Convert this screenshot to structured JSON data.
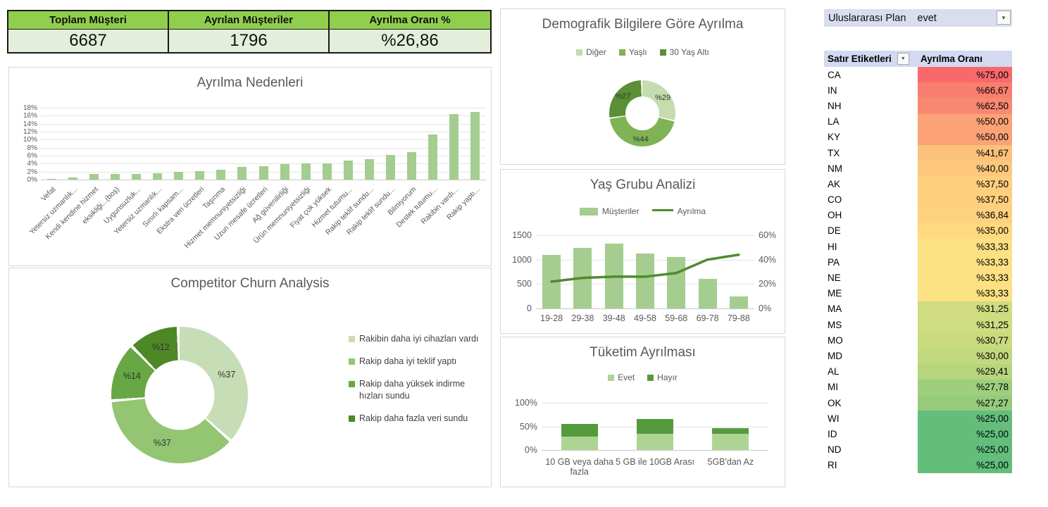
{
  "kpi": {
    "cards": [
      {
        "label": "Toplam Müşteri",
        "value": "6687"
      },
      {
        "label": "Ayrılan Müşteriler",
        "value": "1796"
      },
      {
        "label": "Ayrılma Oranı %",
        "value": "%26,86"
      }
    ]
  },
  "slicer": {
    "label": "Uluslararası Plan",
    "value": "evet"
  },
  "chart_data": [
    {
      "type": "bar",
      "title": "Ayrılma Nedenleri",
      "categories": [
        "Vefat",
        "Yetersiz uzmanlık...",
        "Kendi kendine hizmet",
        "eksikliği...(boş)",
        "Uygunsuzluk...",
        "Yetersiz uzmanlık...",
        "Sınırlı kapsam...",
        "Ekstra veri ücretleri",
        "Taşınma",
        "Hizmet memnuniyetsizliği",
        "Uzun mesafe ücretleri",
        "Ağ güvenilirliği",
        "Ürün memnuniyetsizliği",
        "Fiyat çok yüksek",
        "Hizmet tutumu...",
        "Rakip teklif sundu...",
        "Rakip teklif sundu...",
        "Bilmiyorum",
        "Destek tutumu...",
        "Rakibin vardı...",
        "Rakip yaptı..."
      ],
      "values": [
        0.2,
        0.6,
        1.4,
        1.4,
        1.5,
        1.6,
        2.0,
        2.1,
        2.5,
        3.2,
        3.4,
        3.9,
        4.0,
        4.1,
        4.7,
        5.2,
        6.1,
        6.8,
        11.3,
        16.5,
        16.9
      ],
      "ylabel_unit": "%",
      "ylim": [
        0,
        18
      ],
      "ytick_step": 2,
      "bar_color": "#A5CD8F",
      "grid": true,
      "legend_position": "none"
    },
    {
      "type": "pie",
      "subtype": "donut",
      "title": "Competitor Churn Analysis",
      "legend_position": "right",
      "slices": [
        {
          "label": "Rakibin daha iyi cihazları vardı",
          "value": 37,
          "display": "%37",
          "color": "#C7DDB5"
        },
        {
          "label": "Rakip daha iyi teklif yaptı",
          "value": 37,
          "display": "%37",
          "color": "#93C572"
        },
        {
          "label": "Rakip daha yüksek indirme hızları sundu",
          "value": 14,
          "display": "%14",
          "color": "#67A744"
        },
        {
          "label": "Rakip daha fazla veri sundu",
          "value": 12,
          "display": "%12",
          "color": "#4E8726"
        }
      ]
    },
    {
      "type": "pie",
      "subtype": "donut",
      "title": "Demografik Bilgilere Göre Ayrılma",
      "legend_position": "top",
      "slices": [
        {
          "label": "Diğer",
          "value": 29,
          "display": "%29",
          "color": "#C5DCAE"
        },
        {
          "label": "Yaşlı",
          "value": 44,
          "display": "%44",
          "color": "#7FB356"
        },
        {
          "label": "30 Yaş Altı",
          "value": 27,
          "display": "%27",
          "color": "#5A8F35"
        }
      ]
    },
    {
      "type": "bar",
      "subtype": "combo-bar-line",
      "title": "Yaş Grubu Analizi",
      "categories": [
        "19-28",
        "29-38",
        "39-48",
        "49-58",
        "59-68",
        "69-78",
        "79-88"
      ],
      "series": [
        {
          "name": "Müşteriler",
          "kind": "bar",
          "axis": "left",
          "values": [
            1090,
            1240,
            1320,
            1120,
            1060,
            600,
            250
          ],
          "color": "#A5CD8F"
        },
        {
          "name": "Ayrılma",
          "kind": "line",
          "axis": "right",
          "values": [
            22,
            25,
            26,
            26,
            29,
            40,
            44
          ],
          "color": "#4E8B2F"
        }
      ],
      "left_axis": {
        "ticks": [
          "0",
          "500",
          "1000",
          "1500"
        ],
        "max": 1500
      },
      "right_axis": {
        "ticks": [
          "0%",
          "20%",
          "40%",
          "60%"
        ],
        "max": 60
      },
      "grid": true,
      "legend_position": "top"
    },
    {
      "type": "bar",
      "subtype": "stacked",
      "title": "Tüketim Ayrılması",
      "categories": [
        "10 GB veya daha fazla",
        "5 GB ile 10GB Arası",
        "5GB'dan Az"
      ],
      "series": [
        {
          "name": "Evet",
          "values": [
            28,
            34,
            34
          ],
          "color": "#AED494"
        },
        {
          "name": "Hayır",
          "values": [
            27,
            31,
            12
          ],
          "color": "#569A3E"
        }
      ],
      "yticks": [
        "0%",
        "50%",
        "100%"
      ],
      "ymax": 100,
      "grid": true,
      "legend_position": "top"
    }
  ],
  "pivot_table": {
    "header": {
      "row_label": "Satır Etiketleri",
      "value_label": "Ayrılma Oranı"
    },
    "rows": [
      {
        "state": "CA",
        "value": "%75,00",
        "color": "#F8696B"
      },
      {
        "state": "IN",
        "value": "%66,67",
        "color": "#F97E6F"
      },
      {
        "state": "NH",
        "value": "%62,50",
        "color": "#F98871"
      },
      {
        "state": "LA",
        "value": "%50,00",
        "color": "#FBA376"
      },
      {
        "state": "KY",
        "value": "%50,00",
        "color": "#FBA376"
      },
      {
        "state": "TX",
        "value": "%41,67",
        "color": "#FCC17B"
      },
      {
        "state": "NM",
        "value": "%40,00",
        "color": "#FDC87D"
      },
      {
        "state": "AK",
        "value": "%37,50",
        "color": "#FDCF7E"
      },
      {
        "state": "CO",
        "value": "%37,50",
        "color": "#FDCF7E"
      },
      {
        "state": "OH",
        "value": "%36,84",
        "color": "#FDD17F"
      },
      {
        "state": "DE",
        "value": "%35,00",
        "color": "#FED980"
      },
      {
        "state": "HI",
        "value": "%33,33",
        "color": "#FBE182"
      },
      {
        "state": "PA",
        "value": "%33,33",
        "color": "#FBE182"
      },
      {
        "state": "NE",
        "value": "%33,33",
        "color": "#FBE182"
      },
      {
        "state": "ME",
        "value": "%33,33",
        "color": "#FBE182"
      },
      {
        "state": "MA",
        "value": "%31,25",
        "color": "#CFDC80"
      },
      {
        "state": "MS",
        "value": "%31,25",
        "color": "#CFDC80"
      },
      {
        "state": "MO",
        "value": "%30,77",
        "color": "#C9DA7F"
      },
      {
        "state": "MD",
        "value": "%30,00",
        "color": "#C2D87F"
      },
      {
        "state": "AL",
        "value": "%29,41",
        "color": "#B7D57E"
      },
      {
        "state": "MI",
        "value": "%27,78",
        "color": "#9FCE7D"
      },
      {
        "state": "OK",
        "value": "%27,27",
        "color": "#97CB7C"
      },
      {
        "state": "WI",
        "value": "%25,00",
        "color": "#63BE7B"
      },
      {
        "state": "ID",
        "value": "%25,00",
        "color": "#63BE7B"
      },
      {
        "state": "ND",
        "value": "%25,00",
        "color": "#63BE7B"
      },
      {
        "state": "RI",
        "value": "%25,00",
        "color": "#63BE7B"
      }
    ]
  }
}
